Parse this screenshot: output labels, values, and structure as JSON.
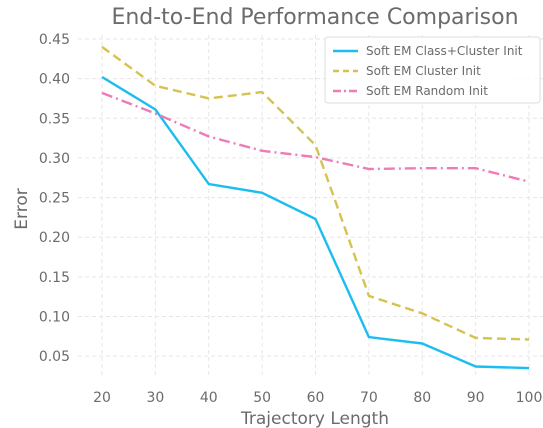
{
  "chart_data": {
    "type": "line",
    "title": "End-to-End Performance Comparison",
    "xlabel": "Trajectory Length",
    "ylabel": "Error",
    "x": [
      20,
      30,
      40,
      50,
      60,
      70,
      80,
      90,
      100
    ],
    "xlim": [
      20,
      100
    ],
    "ylim": [
      0.025,
      0.455
    ],
    "xticks": [
      "20",
      "30",
      "40",
      "50",
      "60",
      "70",
      "80",
      "90",
      "100"
    ],
    "yticks": [
      "0.05",
      "0.10",
      "0.15",
      "0.20",
      "0.25",
      "0.30",
      "0.35",
      "0.40",
      "0.45"
    ],
    "grid": true,
    "legend_position": "top-right",
    "series": [
      {
        "name": "Soft EM Class+Cluster Init",
        "values": [
          0.402,
          0.361,
          0.267,
          0.256,
          0.223,
          0.074,
          0.066,
          0.037,
          0.035
        ],
        "color": "#1cbdf0",
        "line_style": "solid"
      },
      {
        "name": "Soft EM Cluster Init",
        "values": [
          0.44,
          0.391,
          0.375,
          0.383,
          0.316,
          0.126,
          0.104,
          0.073,
          0.071
        ],
        "color": "#d6c24f",
        "line_style": "dashed"
      },
      {
        "name": "Soft EM Random Init",
        "values": [
          0.382,
          0.356,
          0.327,
          0.309,
          0.301,
          0.286,
          0.287,
          0.287,
          0.27
        ],
        "color": "#f07ab5",
        "line_style": "dashdot"
      }
    ]
  }
}
